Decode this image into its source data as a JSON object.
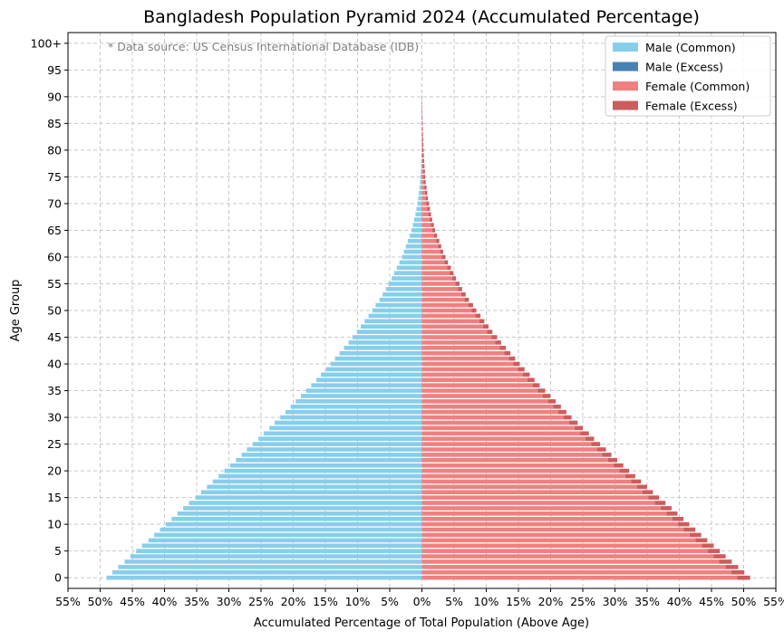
{
  "chart_data": {
    "type": "bar",
    "orientation": "horizontal",
    "title": "Bangladesh Population Pyramid 2024 (Accumulated Percentage)",
    "annotation": "* Data source: US Census International Database (IDB)",
    "xlabel": "Accumulated Percentage of Total Population (Above Age)",
    "ylabel": "Age Group",
    "xlim": [
      -55,
      55
    ],
    "ylim": [
      -2,
      102
    ],
    "x_ticks": [
      -55,
      -50,
      -45,
      -40,
      -35,
      -30,
      -25,
      -20,
      -15,
      -10,
      -5,
      0,
      5,
      10,
      15,
      20,
      25,
      30,
      35,
      40,
      45,
      50,
      55
    ],
    "x_tick_labels": [
      "55%",
      "50%",
      "45%",
      "40%",
      "35%",
      "30%",
      "25%",
      "20%",
      "15%",
      "10%",
      "5%",
      "0%",
      "5%",
      "10%",
      "15%",
      "20%",
      "25%",
      "30%",
      "35%",
      "40%",
      "45%",
      "50%",
      "55%"
    ],
    "y_ticks": [
      0,
      5,
      10,
      15,
      20,
      25,
      30,
      35,
      40,
      45,
      50,
      55,
      60,
      65,
      70,
      75,
      80,
      85,
      90,
      95,
      100
    ],
    "y_tick_labels": [
      "0",
      "5",
      "10",
      "15",
      "20",
      "25",
      "30",
      "35",
      "40",
      "45",
      "50",
      "55",
      "60",
      "65",
      "70",
      "75",
      "80",
      "85",
      "90",
      "95",
      "100+"
    ],
    "grid": true,
    "legend_position": "top-right",
    "ages": [
      0,
      1,
      2,
      3,
      4,
      5,
      6,
      7,
      8,
      9,
      10,
      11,
      12,
      13,
      14,
      15,
      16,
      17,
      18,
      19,
      20,
      21,
      22,
      23,
      24,
      25,
      26,
      27,
      28,
      29,
      30,
      31,
      32,
      33,
      34,
      35,
      36,
      37,
      38,
      39,
      40,
      41,
      42,
      43,
      44,
      45,
      46,
      47,
      48,
      49,
      50,
      51,
      52,
      53,
      54,
      55,
      56,
      57,
      58,
      59,
      60,
      61,
      62,
      63,
      64,
      65,
      66,
      67,
      68,
      69,
      70,
      71,
      72,
      73,
      74,
      75,
      76,
      77,
      78,
      79,
      80,
      81,
      82,
      83,
      84,
      85,
      86,
      87,
      88,
      89,
      90
    ],
    "series": [
      {
        "name": "Male (Common)",
        "color": "#87ceeb",
        "values": [
          49.0,
          48.1,
          47.2,
          46.2,
          45.3,
          44.4,
          43.5,
          42.5,
          41.6,
          40.7,
          39.8,
          38.9,
          38.0,
          37.1,
          36.2,
          35.2,
          34.3,
          33.4,
          32.5,
          31.6,
          30.7,
          29.8,
          28.9,
          28.0,
          27.2,
          26.3,
          25.4,
          24.6,
          23.7,
          22.9,
          22.0,
          21.2,
          20.4,
          19.6,
          18.8,
          18.0,
          17.2,
          16.4,
          15.7,
          14.9,
          14.2,
          13.5,
          12.8,
          12.1,
          11.4,
          10.8,
          10.1,
          9.5,
          8.9,
          8.3,
          7.7,
          7.2,
          6.6,
          6.1,
          5.6,
          5.2,
          4.7,
          4.3,
          3.9,
          3.5,
          3.1,
          2.8,
          2.5,
          2.2,
          1.9,
          1.6,
          1.4,
          1.2,
          1.0,
          0.85,
          0.7,
          0.58,
          0.47,
          0.37,
          0.29,
          0.22,
          0.17,
          0.12,
          0.09,
          0.06,
          0.04,
          0.03,
          0.02,
          0.01,
          0.01,
          0.01,
          0.0,
          0.0,
          0.0,
          0.0,
          0.0
        ]
      },
      {
        "name": "Male (Excess)",
        "color": "#4682b4",
        "values": [
          0,
          0,
          0,
          0,
          0,
          0,
          0,
          0,
          0,
          0,
          0,
          0,
          0,
          0,
          0,
          0,
          0,
          0,
          0,
          0,
          0,
          0,
          0,
          0,
          0,
          0,
          0,
          0,
          0,
          0,
          0,
          0,
          0,
          0,
          0,
          0,
          0,
          0,
          0,
          0,
          0,
          0,
          0,
          0,
          0,
          0,
          0,
          0,
          0,
          0,
          0,
          0,
          0,
          0,
          0,
          0,
          0,
          0,
          0,
          0,
          0,
          0,
          0,
          0,
          0,
          0,
          0,
          0,
          0,
          0,
          0,
          0,
          0,
          0,
          0,
          0,
          0,
          0,
          0,
          0,
          0,
          0,
          0,
          0,
          0,
          0.02,
          0.02,
          0.02,
          0.02,
          0.02,
          0.02
        ]
      },
      {
        "name": "Female (Common)",
        "color": "#f08080",
        "values": [
          49.0,
          48.1,
          47.2,
          46.2,
          45.3,
          44.4,
          43.5,
          42.5,
          41.6,
          40.7,
          39.8,
          38.9,
          38.0,
          37.1,
          36.2,
          35.2,
          34.3,
          33.4,
          32.5,
          31.6,
          30.7,
          29.8,
          28.9,
          28.0,
          27.2,
          26.3,
          25.4,
          24.6,
          23.7,
          22.9,
          22.0,
          21.2,
          20.4,
          19.6,
          18.8,
          18.0,
          17.2,
          16.4,
          15.7,
          14.9,
          14.2,
          13.5,
          12.8,
          12.1,
          11.4,
          10.8,
          10.1,
          9.5,
          8.9,
          8.3,
          7.7,
          7.2,
          6.6,
          6.1,
          5.6,
          5.2,
          4.7,
          4.3,
          3.9,
          3.5,
          3.1,
          2.8,
          2.5,
          2.2,
          1.9,
          1.6,
          1.4,
          1.2,
          1.0,
          0.85,
          0.7,
          0.58,
          0.47,
          0.37,
          0.29,
          0.22,
          0.17,
          0.12,
          0.09,
          0.06,
          0.04,
          0.03,
          0.02,
          0.01,
          0.01,
          0.01,
          0.0,
          0.0,
          0.0,
          0.0,
          0.0
        ]
      },
      {
        "name": "Female (Excess)",
        "color": "#cd5c5c",
        "values": [
          2.0,
          2.0,
          1.95,
          1.95,
          1.9,
          1.9,
          1.85,
          1.85,
          1.8,
          1.8,
          1.75,
          1.75,
          1.7,
          1.7,
          1.65,
          1.65,
          1.6,
          1.6,
          1.55,
          1.55,
          1.5,
          1.5,
          1.45,
          1.45,
          1.4,
          1.4,
          1.35,
          1.35,
          1.3,
          1.3,
          1.25,
          1.25,
          1.2,
          1.2,
          1.15,
          1.15,
          1.1,
          1.1,
          1.05,
          1.05,
          1.0,
          1.0,
          0.95,
          0.95,
          0.9,
          0.9,
          0.85,
          0.85,
          0.8,
          0.8,
          0.75,
          0.75,
          0.7,
          0.7,
          0.65,
          0.65,
          0.6,
          0.6,
          0.6,
          0.55,
          0.55,
          0.5,
          0.5,
          0.5,
          0.45,
          0.45,
          0.45,
          0.4,
          0.4,
          0.4,
          0.4,
          0.35,
          0.35,
          0.35,
          0.3,
          0.3,
          0.3,
          0.28,
          0.26,
          0.24,
          0.22,
          0.2,
          0.18,
          0.16,
          0.14,
          0.12,
          0.1,
          0.08,
          0.06,
          0.04,
          0.02
        ]
      }
    ]
  }
}
